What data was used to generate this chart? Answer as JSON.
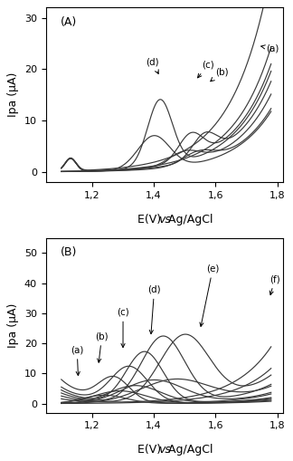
{
  "fig_width": 3.24,
  "fig_height": 5.09,
  "dpi": 100,
  "panel_A": {
    "label": "(A)",
    "xlabel": "E(V) vs Ag/AgCl",
    "ylabel": "Ipa (μA)",
    "xlim": [
      1.05,
      1.82
    ],
    "ylim": [
      -2,
      32
    ],
    "xticks": [
      1.2,
      1.4,
      1.6,
      1.8
    ],
    "xticklabels": [
      "1,2",
      "1,4",
      "1,6",
      "1,8"
    ],
    "yticks": [
      0,
      10,
      20,
      30
    ],
    "x_start": 1.1,
    "x_end": 1.78
  },
  "panel_B": {
    "label": "(B)",
    "xlabel": "E(V) vs Ag/AgCl",
    "ylabel": "Ipa (μA)",
    "xlim": [
      1.05,
      1.82
    ],
    "ylim": [
      -3,
      55
    ],
    "xticks": [
      1.2,
      1.4,
      1.6,
      1.8
    ],
    "xticklabels": [
      "1,2",
      "1,4",
      "1,6",
      "1,8"
    ],
    "yticks": [
      0,
      10,
      20,
      30,
      40,
      50
    ],
    "x_start": 1.1,
    "x_end": 1.78
  }
}
